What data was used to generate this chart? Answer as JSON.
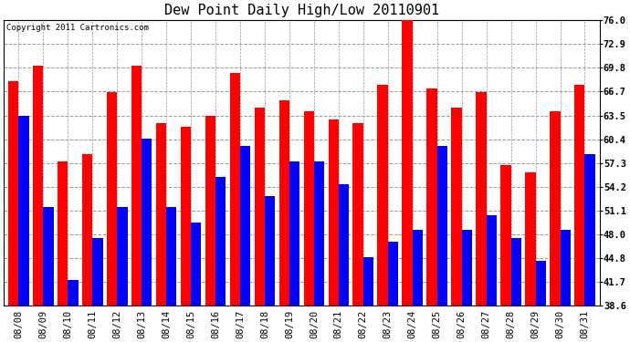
{
  "title": "Dew Point Daily High/Low 20110901",
  "copyright": "Copyright 2011 Cartronics.com",
  "dates": [
    "08/08",
    "08/09",
    "08/10",
    "08/11",
    "08/12",
    "08/13",
    "08/14",
    "08/15",
    "08/16",
    "08/17",
    "08/18",
    "08/19",
    "08/20",
    "08/21",
    "08/22",
    "08/23",
    "08/24",
    "08/25",
    "08/26",
    "08/27",
    "08/28",
    "08/29",
    "08/30",
    "08/31"
  ],
  "highs": [
    68.0,
    70.0,
    57.5,
    58.5,
    66.5,
    70.0,
    62.5,
    62.0,
    63.5,
    69.0,
    64.5,
    65.5,
    64.0,
    63.0,
    62.5,
    67.5,
    76.0,
    67.0,
    64.5,
    66.5,
    57.0,
    56.0,
    64.0,
    67.5
  ],
  "lows": [
    63.5,
    51.5,
    42.0,
    47.5,
    51.5,
    60.5,
    51.5,
    49.5,
    55.5,
    59.5,
    53.0,
    57.5,
    57.5,
    54.5,
    45.0,
    47.0,
    48.5,
    59.5,
    48.5,
    50.5,
    47.5,
    44.5,
    48.5,
    58.5
  ],
  "high_color": "#ff0000",
  "low_color": "#0000ff",
  "bg_color": "#ffffff",
  "plot_bg_color": "#ffffff",
  "grid_color": "#999999",
  "ymin": 38.6,
  "ymax": 76.0,
  "yticks": [
    38.6,
    41.7,
    44.8,
    48.0,
    51.1,
    54.2,
    57.3,
    60.4,
    63.5,
    66.7,
    69.8,
    72.9,
    76.0
  ],
  "bar_width": 0.42,
  "title_fontsize": 11,
  "tick_fontsize": 7.5,
  "copyright_fontsize": 6.5
}
